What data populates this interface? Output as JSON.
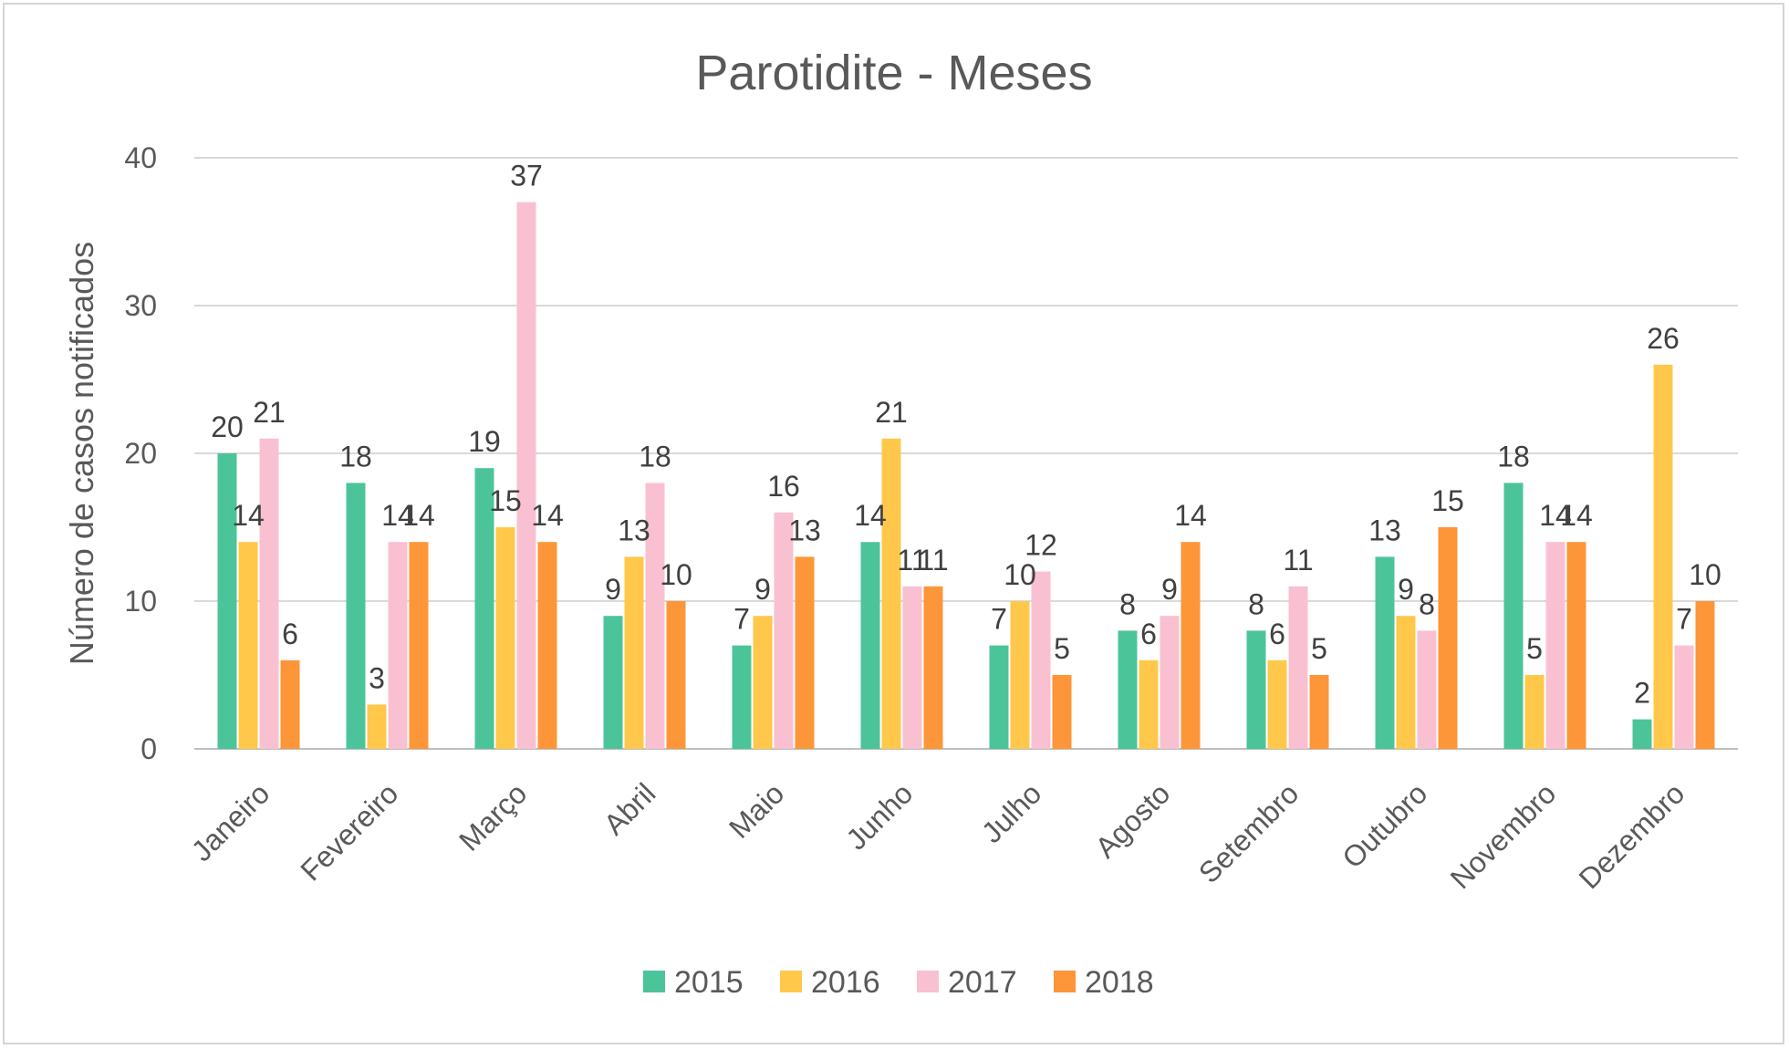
{
  "chart_data": {
    "type": "bar",
    "title": "Parotidite - Meses",
    "xlabel": "",
    "ylabel": "Número de casos notificados",
    "ylim": [
      0,
      40
    ],
    "yticks": [
      0,
      10,
      20,
      30,
      40
    ],
    "grid": true,
    "legend_position": "bottom",
    "categories": [
      "Janeiro",
      "Fevereiro",
      "Março",
      "Abril",
      "Maio",
      "Junho",
      "Julho",
      "Agosto",
      "Setembro",
      "Outubro",
      "Novembro",
      "Dezembro"
    ],
    "series": [
      {
        "name": "2015",
        "color": "#4cc49a",
        "values": [
          20,
          18,
          19,
          9,
          7,
          14,
          7,
          8,
          8,
          13,
          18,
          2
        ]
      },
      {
        "name": "2016",
        "color": "#ffc84b",
        "values": [
          14,
          3,
          15,
          13,
          9,
          21,
          10,
          6,
          6,
          9,
          5,
          26
        ]
      },
      {
        "name": "2017",
        "color": "#f9c0d2",
        "values": [
          21,
          14,
          37,
          18,
          16,
          11,
          12,
          9,
          11,
          8,
          14,
          7
        ]
      },
      {
        "name": "2018",
        "color": "#fd9638",
        "values": [
          6,
          14,
          14,
          10,
          13,
          11,
          5,
          14,
          5,
          15,
          14,
          10
        ]
      }
    ]
  }
}
